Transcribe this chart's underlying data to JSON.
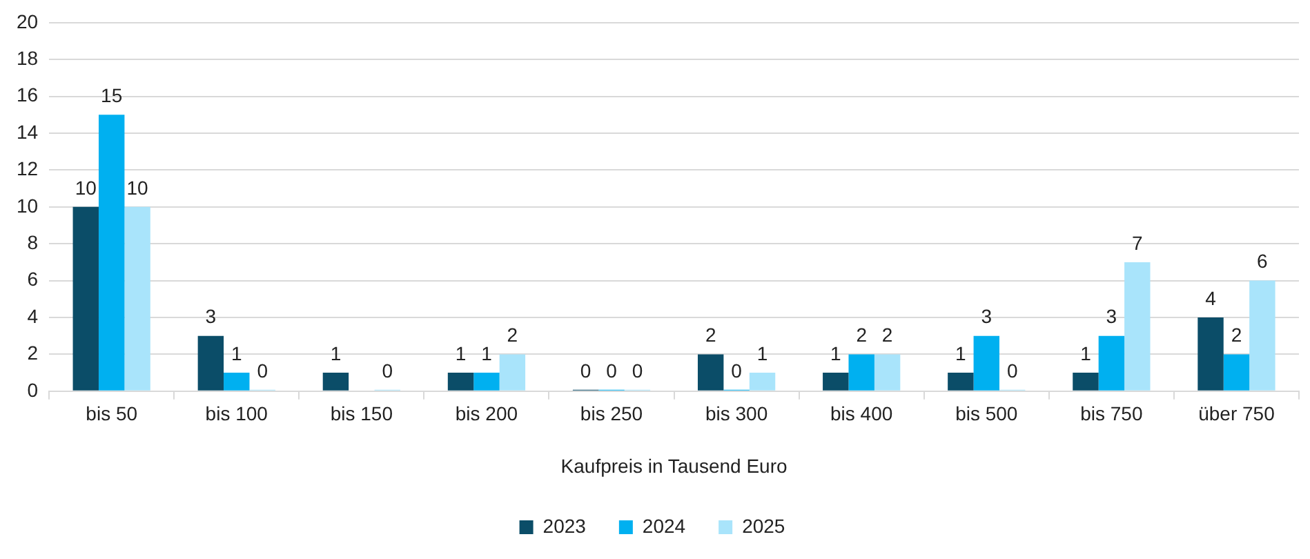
{
  "chart_data": {
    "type": "bar",
    "xlabel": "Kaufpreis in Tausend Euro",
    "categories": [
      "bis 50",
      "bis 100",
      "bis 150",
      "bis 200",
      "bis 250",
      "bis 300",
      "bis 400",
      "bis 500",
      "bis 750",
      "über 750"
    ],
    "series": [
      {
        "name": "2023",
        "color": "#0b4d68",
        "values": [
          10,
          3,
          1,
          1,
          0,
          2,
          1,
          1,
          1,
          4
        ]
      },
      {
        "name": "2024",
        "color": "#00b0f0",
        "values": [
          15,
          1,
          null,
          1,
          0,
          0,
          2,
          3,
          3,
          2
        ]
      },
      {
        "name": "2025",
        "color": "#a9e4fb",
        "values": [
          10,
          0,
          0,
          2,
          0,
          1,
          2,
          0,
          7,
          6
        ]
      }
    ],
    "ylim": [
      0,
      20
    ],
    "yticks": [
      0,
      2,
      4,
      6,
      8,
      10,
      12,
      14,
      16,
      18,
      20
    ],
    "grid": "y",
    "legend": "bottom",
    "data_labels": true
  }
}
